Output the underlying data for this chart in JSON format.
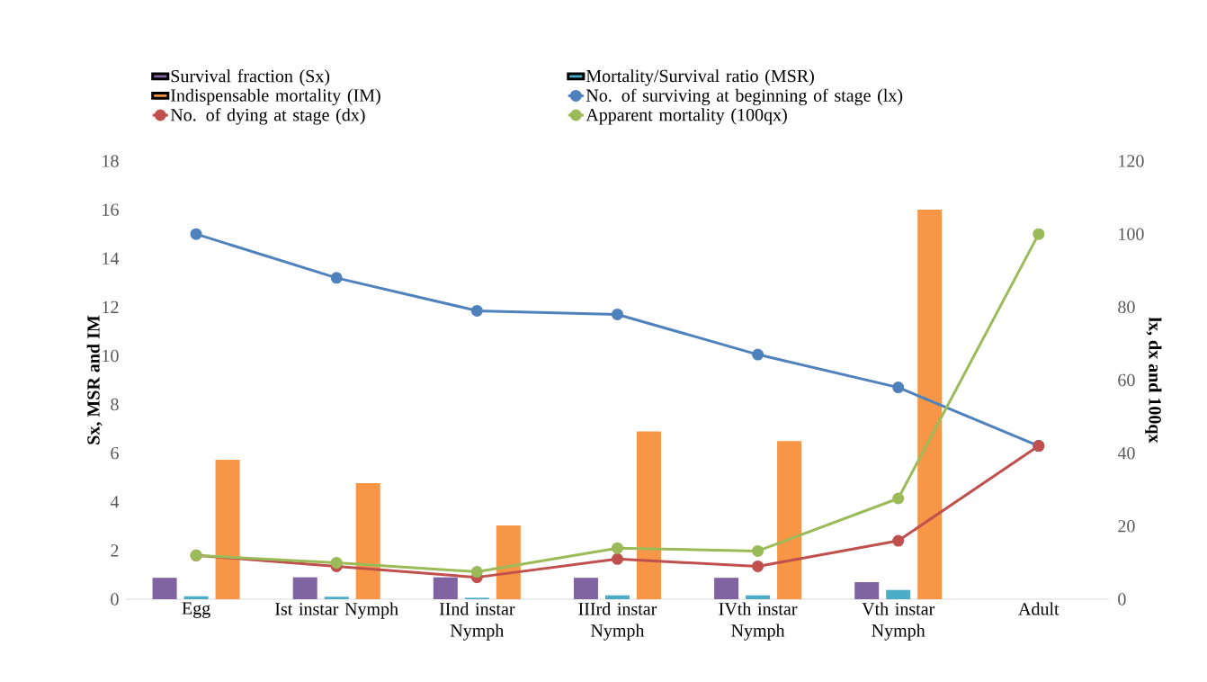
{
  "chart_data": {
    "type": "bar",
    "categories": [
      "Egg",
      "Ist instar Nymph",
      "IInd instar Nymph",
      "IIIrd instar Nymph",
      "IVth instar Nymph",
      "Vth instar Nymph",
      "Adult"
    ],
    "series": [
      {
        "name": "Survival fraction (Sx)",
        "color": "#8064a2",
        "values": [
          0.88,
          0.9,
          0.9,
          0.88,
          0.88,
          0.7,
          null
        ]
      },
      {
        "name": "Mortality/Survival ratio (MSR)",
        "color": "#4bacc6",
        "values": [
          0.12,
          0.1,
          0.06,
          0.16,
          0.16,
          0.38,
          null
        ]
      },
      {
        "name": "Indispensable mortality (IM)",
        "color": "#f79646",
        "values": [
          5.73,
          4.77,
          3.03,
          6.89,
          6.5,
          16,
          null
        ]
      },
      {
        "name": "No. of surviving at beginning  of stage (lx)",
        "color": "#4f81bd",
        "type": "line",
        "axis": "y2",
        "values": [
          100,
          88,
          79,
          78,
          67,
          58,
          42
        ]
      },
      {
        "name": "No. of dying at stage (dx)",
        "color": "#c0504d",
        "type": "line",
        "axis": "y2",
        "values": [
          12,
          9,
          6,
          11,
          9,
          16,
          42
        ]
      },
      {
        "name": "Apparent mortality (100qx)",
        "color": "#9bbb59",
        "type": "line",
        "axis": "y2",
        "values": [
          12,
          10,
          7.5,
          14,
          13.2,
          27.6,
          100
        ]
      }
    ],
    "ylabel": "Sx, MSR and IM",
    "y2label": "lx, dx and 100qx",
    "ylim": [
      0,
      18
    ],
    "yticks": [
      0,
      2,
      4,
      6,
      8,
      10,
      12,
      14,
      16,
      18
    ],
    "y2lim": [
      0,
      120
    ],
    "y2ticks": [
      0,
      20,
      40,
      60,
      80,
      100,
      120
    ],
    "legend": "top",
    "marker": "circle"
  }
}
